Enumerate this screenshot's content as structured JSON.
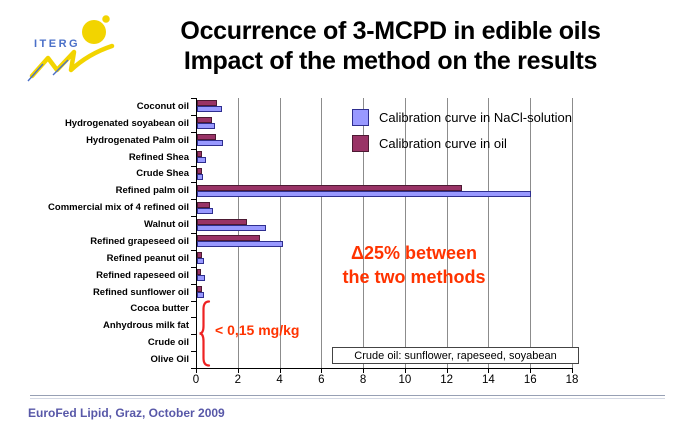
{
  "header": {
    "logo_text": "ITERG",
    "title_line1": "Occurrence of 3-MCPD in edible oils",
    "title_line2": "Impact of the method on the results"
  },
  "chart_data": {
    "type": "bar",
    "orientation": "horizontal",
    "title": "",
    "xlabel": "",
    "ylabel": "",
    "unit": "mg/kg",
    "xlim": [
      0,
      18
    ],
    "xticks": [
      0,
      2,
      4,
      6,
      8,
      10,
      12,
      14,
      16,
      18
    ],
    "grid": true,
    "legend_position": "top-right-inside",
    "categories": [
      "Coconut oil",
      "Hydrogenated soyabean oil",
      "Hydrogenated Palm oil",
      "Refined Shea",
      "Crude Shea",
      "Refined palm oil",
      "Commercial mix of 4 refined oil",
      "Walnut oil",
      "Refined grapeseed oil",
      "Refined peanut oil",
      "Refined rapeseed oil",
      "Refined sunflower oil",
      "Cocoa butter",
      "Anhydrous milk fat",
      "Crude oil",
      "Olive Oil"
    ],
    "series": [
      {
        "name": "Calibration curve in NaCl-solution",
        "color": "#9999FF",
        "border_color": "#2E2E8F",
        "values": [
          1.2,
          0.85,
          1.25,
          0.45,
          0.3,
          16.0,
          0.75,
          3.3,
          4.1,
          0.35,
          0.4,
          0.35,
          0,
          0,
          0,
          0
        ]
      },
      {
        "name": "Calibration curve in oil",
        "color": "#993366",
        "border_color": "#4D1A33",
        "values": [
          0.95,
          0.7,
          0.9,
          0.25,
          0.25,
          12.7,
          0.6,
          2.4,
          3.0,
          0.25,
          0.2,
          0.25,
          0,
          0,
          0,
          0
        ]
      }
    ],
    "annotations": {
      "delta_line1": "Δ25% between",
      "delta_line2": "the two methods",
      "delta_color": "#FF3300",
      "brace_label": "< 0,15 mg/kg",
      "brace_color": "#EE2222",
      "brace_categories": [
        "Cocoa butter",
        "Anhydrous milk fat",
        "Crude oil",
        "Olive Oil"
      ],
      "note": "Crude oil: sunflower, rapeseed, soyabean"
    }
  },
  "footer": {
    "text": "EuroFed Lipid, Graz, October 2009"
  }
}
